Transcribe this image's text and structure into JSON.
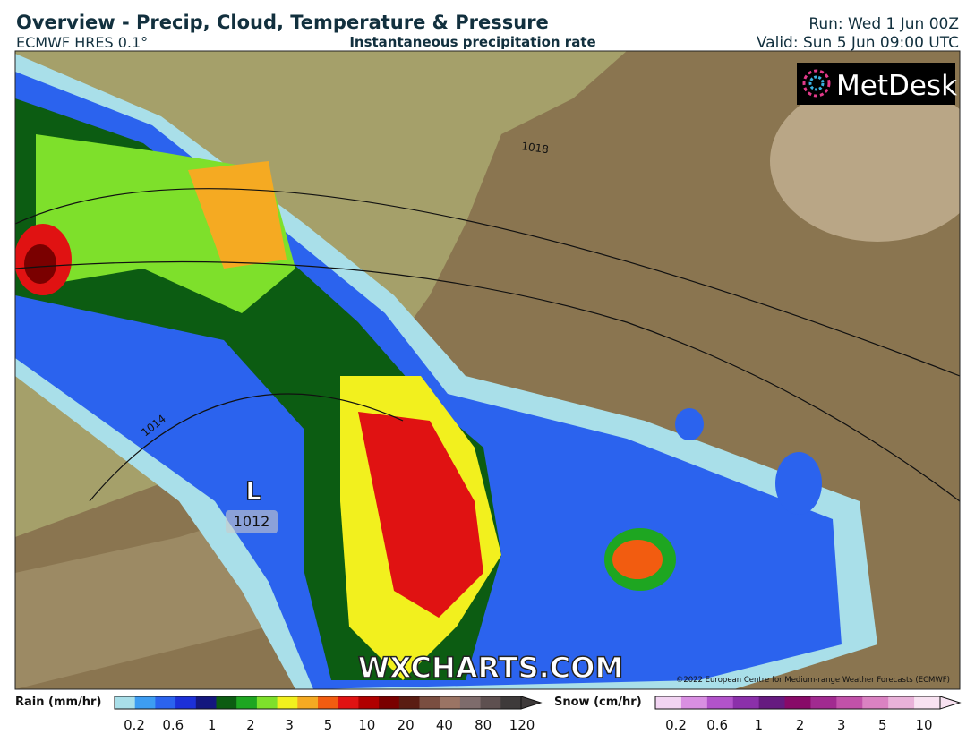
{
  "header": {
    "title": "Overview - Precip, Cloud, Temperature & Pressure",
    "model": "ECMWF HRES 0.1°",
    "subtitle": "Instantaneous precipitation rate",
    "run": "Run: Wed 1 Jun 00Z",
    "valid": "Valid: Sun 5 Jun 09:00 UTC"
  },
  "map": {
    "logo": "MetDesk",
    "watermark": "WXCHARTS.COM",
    "copyright": "©2022 European Centre for Medium-range Weather Forecasts (ECMWF)",
    "isobars": [
      "1018",
      "1014"
    ],
    "low": {
      "symbol": "L",
      "pressure": "1012"
    }
  },
  "legend": {
    "rain": {
      "label": "Rain (mm/hr)",
      "ticks": [
        "0.2",
        "0.6",
        "1",
        "2",
        "3",
        "5",
        "10",
        "20",
        "40",
        "80",
        "120"
      ],
      "colors": [
        "#a9dfe9",
        "#3d9df2",
        "#2b63ee",
        "#1c30d8",
        "#14177e",
        "#0c5c12",
        "#1ea621",
        "#7ee02b",
        "#f2f01e",
        "#f5aa22",
        "#f25c10",
        "#e01212",
        "#b00000",
        "#7a0000",
        "#5a1c12",
        "#7a4e40",
        "#9a7464",
        "#7e6c6c",
        "#5e5050",
        "#3e3a3a"
      ]
    },
    "snow": {
      "label": "Snow (cm/hr)",
      "ticks": [
        "0.2",
        "0.6",
        "1",
        "2",
        "3",
        "5",
        "10"
      ],
      "colors": [
        "#f2d4f2",
        "#d98fe2",
        "#b253ca",
        "#8b30aa",
        "#661a80",
        "#880a68",
        "#a12a90",
        "#c151a9",
        "#da82c2",
        "#e9b2d9",
        "#f8e2f1"
      ]
    }
  }
}
